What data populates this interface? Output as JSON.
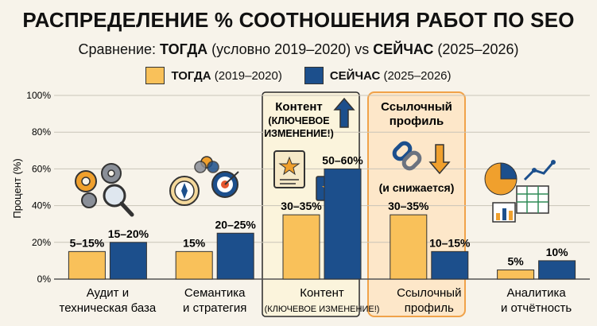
{
  "header": {
    "title": "РАСПРЕДЕЛЕНИЕ % СООТНОШЕНИЯ РАБОТ ПО SEO",
    "subtitle_prefix": "Сравнение: ",
    "subtitle_then": "ТОГДА",
    "subtitle_then_period": " (условно 2019–2020) vs ",
    "subtitle_now": "СЕЙЧАС",
    "subtitle_now_period": " (2025–2026)"
  },
  "legend": {
    "then_bold": "ТОГДА",
    "then_rest": " (2019–2020)",
    "now_bold": "СЕЙЧАС",
    "now_rest": " (2025–2026)"
  },
  "colors": {
    "then": "#f9c15a",
    "now": "#1c4f8c",
    "highlight_content_bg": "#fbf4dc",
    "highlight_links_bg": "#fde7c9",
    "highlight_links_border": "#f0a24a",
    "highlight_content_border": "#2a2a2a"
  },
  "callouts": {
    "content": {
      "line1": "Контент",
      "line2": "(КЛЮЧЕВОЕ",
      "line3": "ИЗМЕНЕНИЕ!)"
    },
    "links": {
      "line1": "Ссылочный",
      "line2": "профиль",
      "line3": "(и снижается)"
    }
  },
  "chart_data": {
    "type": "bar",
    "ylabel": "Процент (%)",
    "ylim": [
      0,
      100
    ],
    "yticks": [
      "0%",
      "20%",
      "40%",
      "60%",
      "80%",
      "100%"
    ],
    "grid": true,
    "legend_position": "top",
    "categories": [
      {
        "line1": "Аудит и",
        "line2": "техническая база"
      },
      {
        "line1": "Семантика",
        "line2": "и стратегия"
      },
      {
        "line1": "Контент",
        "line2": "(КЛЮЧЕВОЕ ИЗМЕНЕНИЕ!)"
      },
      {
        "line1": "Ссылочный",
        "line2": "профиль"
      },
      {
        "line1": "Аналитика",
        "line2": "и отчётность"
      }
    ],
    "series": [
      {
        "name": "ТОГДА (2019–2020)",
        "values": [
          15,
          15,
          35,
          35,
          5
        ],
        "labels": [
          "5–15%",
          "15%",
          "30–35%",
          "30–35%",
          "5%"
        ]
      },
      {
        "name": "СЕЙЧАС (2025–2026)",
        "values": [
          20,
          25,
          60,
          15,
          10
        ],
        "labels": [
          "15–20%",
          "20–25%",
          "50–60%",
          "10–15%",
          "10%"
        ]
      }
    ]
  }
}
